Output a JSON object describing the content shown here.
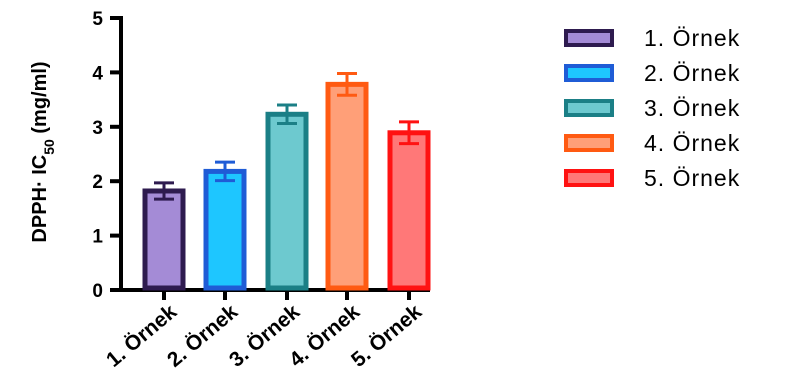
{
  "chart_data": {
    "type": "bar",
    "title": "",
    "xlabel": "",
    "ylabel": {
      "main": "DPPH· IC",
      "subscript": "50",
      "unit": " (mg/ml)"
    },
    "ylim": [
      0,
      5
    ],
    "yticks": [
      "0",
      "1",
      "2",
      "3",
      "4",
      "5"
    ],
    "categories": [
      "1. Örnek",
      "2. Örnek",
      "3. Örnek",
      "4. Örnek",
      "5. Örnek"
    ],
    "values": [
      1.82,
      2.18,
      3.23,
      3.78,
      2.89
    ],
    "errors": [
      0.15,
      0.17,
      0.17,
      0.2,
      0.2
    ],
    "fill_colors": [
      "#a48bd6",
      "#1ec6ff",
      "#6dc9cf",
      "#ff9f78",
      "#ff7878"
    ],
    "edge_colors": [
      "#2e1b4f",
      "#1f5cd6",
      "#1b7f86",
      "#ff5a12",
      "#ff1212"
    ],
    "legend": {
      "placement": "right",
      "entries": [
        "1. Örnek",
        "2. Örnek",
        "3. Örnek",
        "4. Örnek",
        "5. Örnek"
      ]
    },
    "grid": false
  }
}
